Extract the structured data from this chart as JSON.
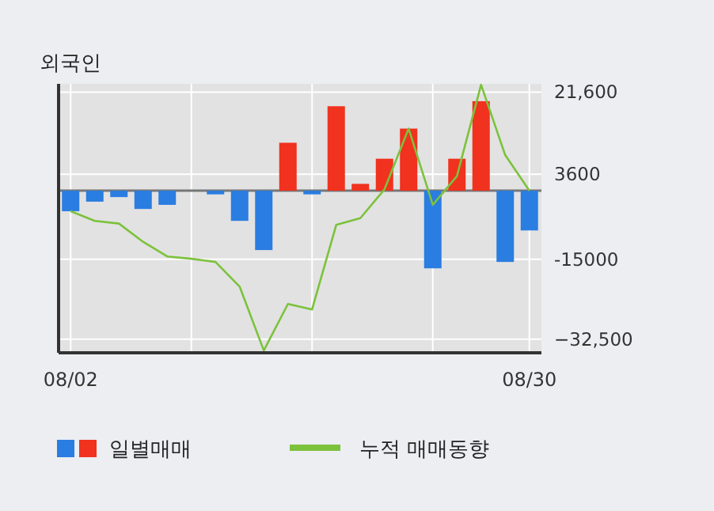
{
  "chart_data": {
    "type": "bar",
    "title": "외국인",
    "categories": [
      "08/02",
      null,
      null,
      null,
      null,
      null,
      null,
      null,
      null,
      null,
      null,
      null,
      null,
      null,
      null,
      null,
      null,
      null,
      null,
      "08/30"
    ],
    "series": [
      {
        "name": "일별매매",
        "colors": [
          "#2a7de1",
          "#2a7de1",
          "#2a7de1",
          "#2a7de1",
          "#2a7de1",
          "#2a7de1",
          "#2a7de1",
          "#2a7de1",
          "#2a7de1",
          "#f0321e",
          "#2a7de1",
          "#f0321e",
          "#f0321e",
          "#f0321e",
          "#f0321e",
          "#2a7de1",
          "#f0321e",
          "#f0321e",
          "#2a7de1",
          "#2a7de1"
        ],
        "values": [
          -4500,
          -2400,
          -1400,
          -4000,
          -3100,
          0,
          -800,
          -6600,
          -13000,
          10500,
          -800,
          18500,
          1500,
          7000,
          13600,
          -17000,
          7000,
          19600,
          -15600,
          -8700
        ]
      },
      {
        "name": "누적 매매동향",
        "type": "line",
        "color": "#7cc23c",
        "values": [
          -4500,
          -6600,
          -7200,
          -11200,
          -14400,
          -14900,
          -15600,
          -21000,
          -35000,
          -24800,
          -26000,
          -7500,
          -6000,
          300,
          13600,
          -3100,
          3200,
          23200,
          7800,
          0
        ]
      }
    ],
    "ylim": [
      -35500,
      23400
    ],
    "yticks": [
      {
        "value": 21600,
        "label": "21,600"
      },
      3600,
      -15000,
      {
        "value": -32500,
        "label": "−32,500"
      }
    ],
    "grid": true,
    "legend": "bottom"
  }
}
